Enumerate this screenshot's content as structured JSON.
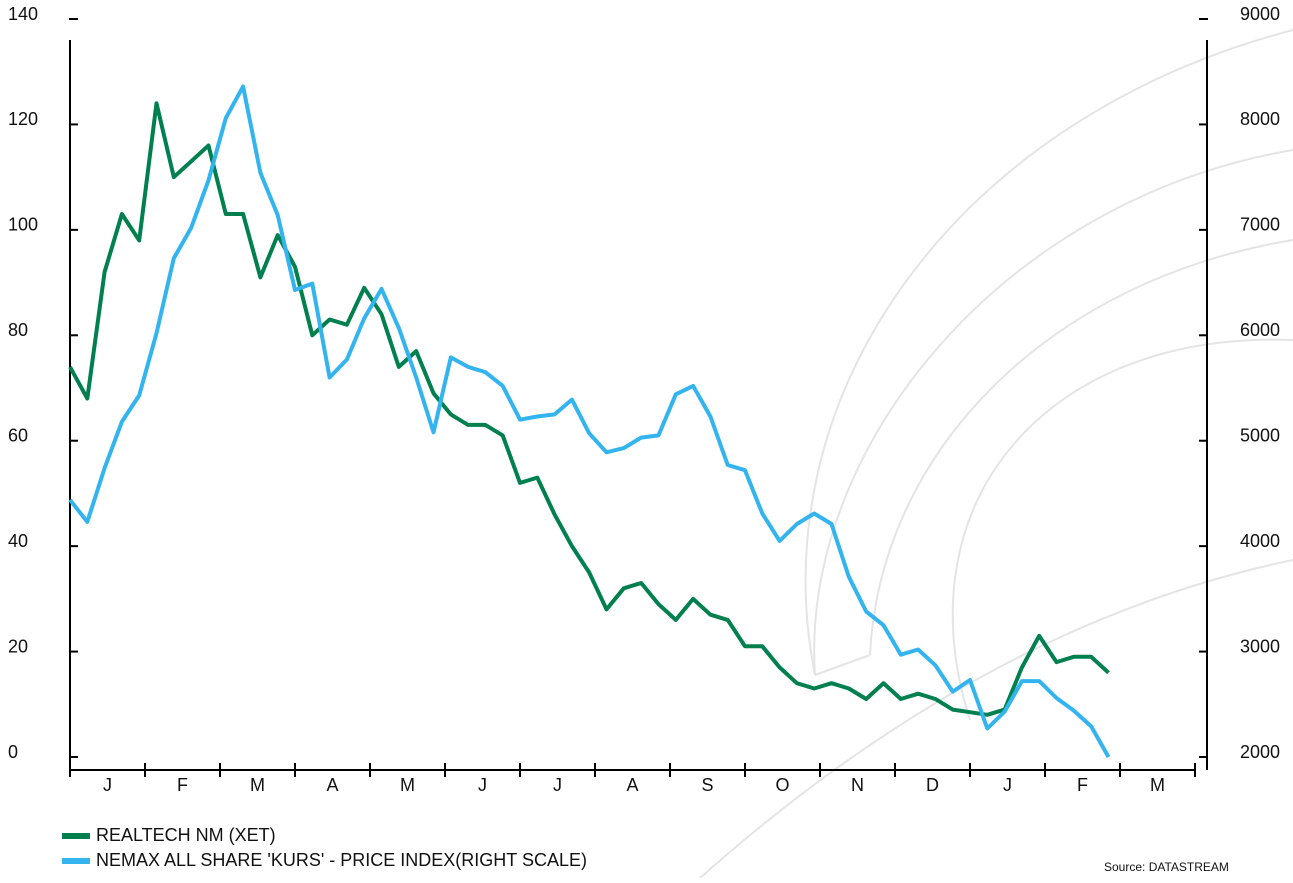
{
  "chart_data": {
    "type": "line",
    "months": [
      "J",
      "F",
      "M",
      "A",
      "M",
      "J",
      "J",
      "A",
      "S",
      "O",
      "N",
      "D",
      "J",
      "F",
      "M"
    ],
    "ylim": [
      0,
      140
    ],
    "yticks": [
      0,
      20,
      40,
      60,
      80,
      100,
      120,
      140
    ],
    "y2lim": [
      2000,
      9000
    ],
    "y2ticks": [
      2000,
      3000,
      4000,
      5000,
      6000,
      7000,
      8000,
      9000
    ],
    "series": [
      {
        "name": "REALTECH NM (XET)",
        "color": "#00804f",
        "values": [
          74,
          68,
          92,
          103,
          98,
          124,
          110,
          113,
          116,
          103,
          103,
          91,
          99,
          93,
          80,
          83,
          82,
          89,
          84,
          74,
          77,
          69,
          65,
          63,
          63,
          61,
          52,
          53,
          46,
          40,
          35,
          28,
          32,
          33,
          29,
          26,
          30,
          27,
          26,
          21,
          21,
          17,
          14,
          13,
          14,
          13,
          11,
          14,
          11,
          12,
          11,
          9,
          8.5,
          8,
          9,
          17,
          23,
          18,
          19,
          19,
          16
        ]
      },
      {
        "name": "NEMAX ALL SHARE 'KURS' - PRICE INDEX(RIGHT SCALE)",
        "color": "#33b4ef",
        "axis": "y2",
        "values": [
          4440,
          4230,
          4740,
          5180,
          5430,
          6020,
          6730,
          7020,
          7470,
          8060,
          8360,
          7540,
          7140,
          6430,
          6490,
          5600,
          5770,
          6160,
          6440,
          6070,
          5600,
          5080,
          5790,
          5700,
          5650,
          5520,
          5200,
          5230,
          5250,
          5390,
          5070,
          4890,
          4930,
          5030,
          5050,
          5440,
          5520,
          5230,
          4770,
          4720,
          4310,
          4050,
          4210,
          4310,
          4210,
          3710,
          3380,
          3250,
          2970,
          3020,
          2870,
          2620,
          2730,
          2270,
          2430,
          2720,
          2720,
          2560,
          2440,
          2290,
          2000
        ]
      }
    ],
    "source": "Source: DATASTREAM"
  }
}
